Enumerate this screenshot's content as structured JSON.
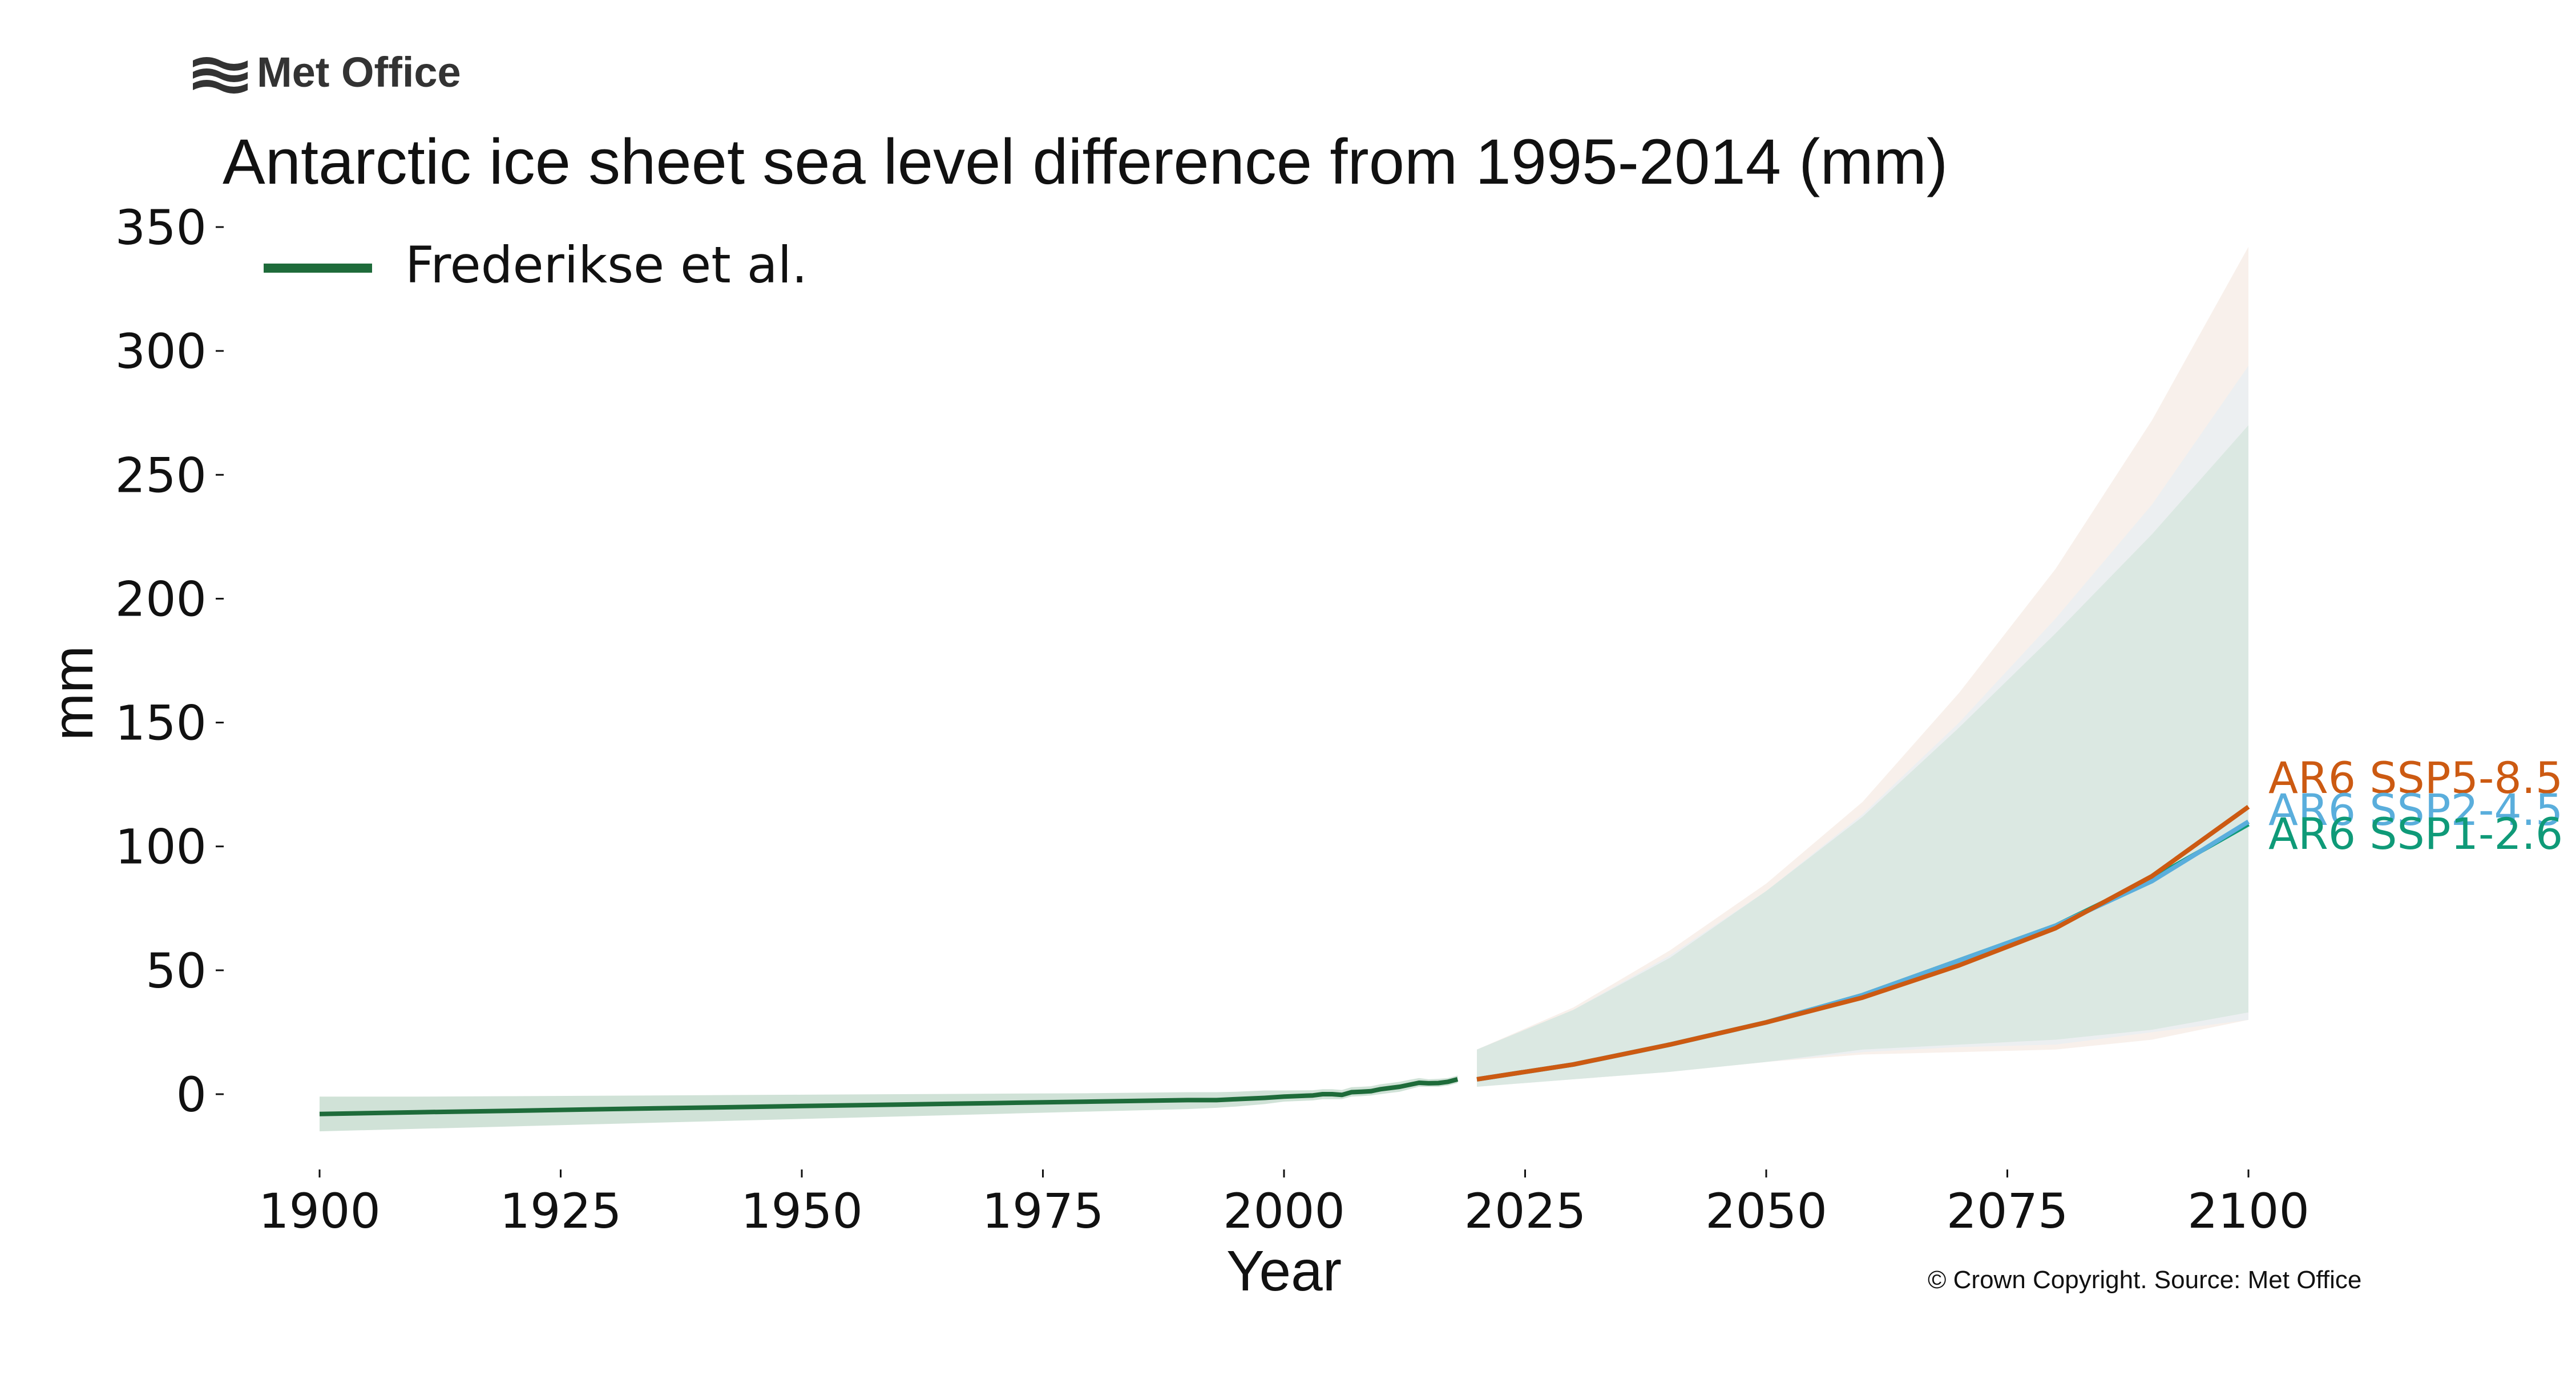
{
  "brand": {
    "name": "Met Office"
  },
  "copyright": "© Crown Copyright. Source: Met Office",
  "colors": {
    "observed": "#1e6b3a",
    "ssp585": "#cc5a12",
    "ssp245": "#5aaedc",
    "ssp126": "#0f9a78",
    "obs_band": "#c8ddd0",
    "ssp585_band": "#f3e3da",
    "ssp245_band": "#e4eef5",
    "ssp126_band": "#d5e6dc"
  },
  "chart_data": {
    "type": "line",
    "title": "Antarctic ice sheet sea level difference from 1995-2014 (mm)",
    "xlabel": "Year",
    "ylabel": "mm",
    "xlim": [
      1893,
      2120
    ],
    "ylim": [
      -30,
      355
    ],
    "xticks": [
      "1900",
      "1925",
      "1950",
      "1975",
      "2000",
      "2025",
      "2050",
      "2075",
      "2100"
    ],
    "yticks": [
      "350",
      "300",
      "250",
      "200",
      "150",
      "100",
      "50",
      "0"
    ],
    "grid": false,
    "legend": {
      "placement": "top-left",
      "entries": [
        "Frederikse et al."
      ]
    },
    "observed": {
      "name": "Frederikse et al.",
      "x": [
        1900,
        1910,
        1920,
        1930,
        1940,
        1950,
        1960,
        1970,
        1980,
        1990,
        1993,
        1995,
        1998,
        2000,
        2003,
        2004,
        2005,
        2006,
        2007,
        2008,
        2009,
        2010,
        2011,
        2012,
        2013,
        2014,
        2015,
        2016,
        2017,
        2018
      ],
      "y": [
        -8,
        -7.3,
        -6.7,
        -6,
        -5.4,
        -4.8,
        -4.2,
        -3.6,
        -3,
        -2.4,
        -2.4,
        -2,
        -1.5,
        -1,
        -0.5,
        0,
        0,
        -0.3,
        0.8,
        1,
        1.2,
        2,
        2.5,
        3,
        3.8,
        4.6,
        4.4,
        4.5,
        5,
        6
      ],
      "band_lower": [
        -15,
        -14,
        -13,
        -12,
        -11,
        -10,
        -9,
        -8,
        -7,
        -6,
        -5.5,
        -5,
        -4,
        -3,
        -2.5,
        -2,
        -2,
        -2,
        -1,
        -0.8,
        -0.5,
        0,
        0.5,
        1,
        2,
        3,
        3,
        3,
        3.5,
        4.5
      ],
      "band_upper": [
        -1,
        -1,
        -0.8,
        -0.6,
        -0.4,
        -0.2,
        0,
        0.2,
        0.4,
        0.8,
        0.8,
        1,
        1.5,
        1.5,
        1.6,
        2,
        2,
        1.7,
        2.8,
        3,
        3.2,
        4,
        4.5,
        5,
        5.8,
        6.5,
        6,
        6.2,
        6.5,
        7.5
      ]
    },
    "projections_x": [
      2020,
      2030,
      2040,
      2050,
      2060,
      2070,
      2080,
      2090,
      2100
    ],
    "series": [
      {
        "name": "AR6 SSP5-8.5",
        "label": "AR6 SSP5-8.5",
        "values": [
          6,
          12,
          20,
          29,
          39,
          52,
          67,
          88,
          116
        ],
        "band_lower": [
          3,
          6,
          9,
          13,
          16,
          17,
          18,
          22,
          30
        ],
        "band_upper": [
          18,
          35,
          58,
          85,
          118,
          162,
          212,
          272,
          342
        ]
      },
      {
        "name": "AR6 SSP2-4.5",
        "label": "AR6 SSP2-4.5",
        "values": [
          6,
          12,
          20,
          29,
          40,
          54,
          68,
          86,
          110
        ],
        "band_lower": [
          3,
          6,
          9,
          13,
          17,
          19,
          20,
          25,
          30
        ],
        "band_upper": [
          18,
          34,
          56,
          82,
          113,
          150,
          192,
          238,
          294
        ]
      },
      {
        "name": "AR6 SSP1-2.6",
        "label": "AR6 SSP1-2.6",
        "values": [
          6,
          12,
          20,
          29,
          40,
          54,
          68,
          87,
          109
        ],
        "band_lower": [
          3,
          6,
          9,
          13,
          18,
          20,
          22,
          26,
          33
        ],
        "band_upper": [
          18,
          34,
          55,
          82,
          112,
          148,
          186,
          226,
          270
        ]
      }
    ]
  }
}
